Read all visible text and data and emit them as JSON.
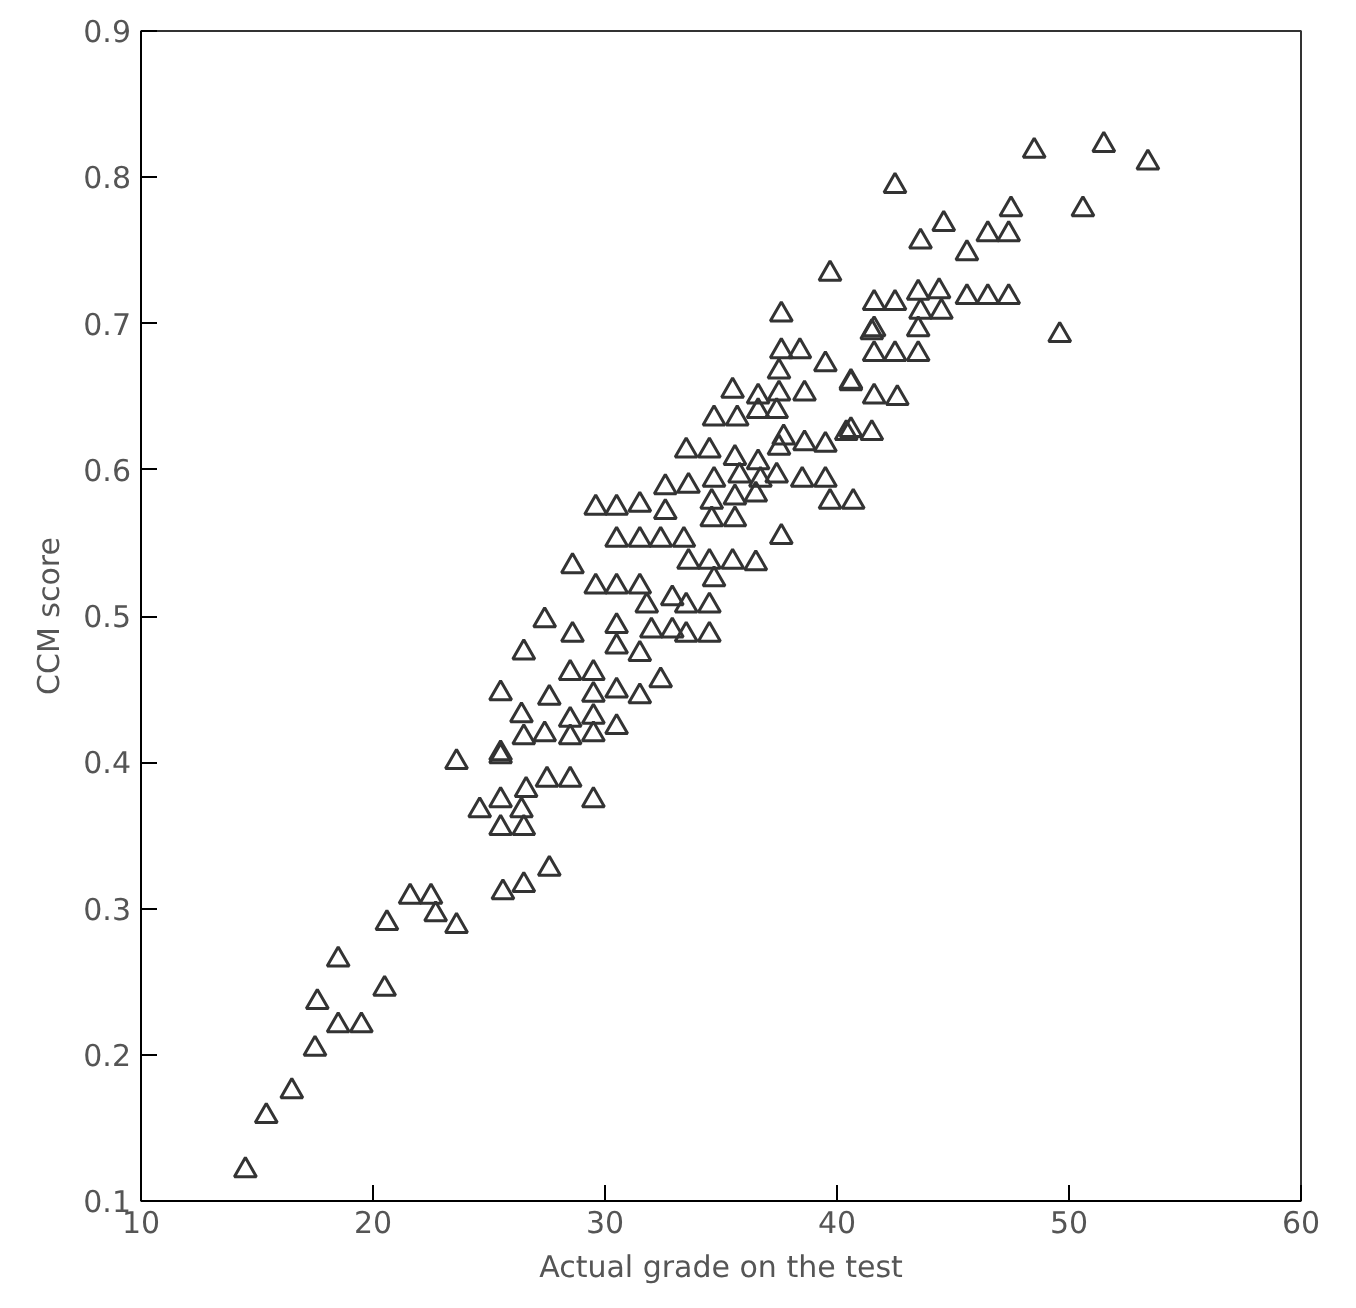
{
  "chart_data": {
    "type": "scatter",
    "xlabel": "Actual grade on the test",
    "ylabel": "CCM score",
    "marker": "triangle",
    "xlim": [
      10,
      60
    ],
    "ylim": [
      0.1,
      0.9
    ],
    "xticks": [
      10,
      20,
      30,
      40,
      50,
      60
    ],
    "yticks": [
      0.1,
      0.2,
      0.3,
      0.4,
      0.5,
      0.6,
      0.7,
      0.8,
      0.9
    ],
    "series": [
      {
        "color": "#333333",
        "x": [
          14.5,
          15.4,
          16.5,
          17.5,
          17.6,
          18.5,
          18.5,
          19.5,
          20.5,
          20.6,
          21.6,
          22.5,
          22.7,
          23.6,
          23.6,
          25.5,
          24.6,
          25.5,
          26.6,
          26.4,
          25.5,
          26.5,
          27.5,
          28.5,
          29.5,
          25.6,
          26.5,
          27.6,
          25.5,
          25.5,
          26.4,
          26.5,
          27.4,
          27.6,
          28.5,
          28.5,
          28.5,
          29.5,
          29.5,
          29.5,
          29.5,
          30.5,
          30.5,
          31.5,
          32.4,
          26.5,
          27.4,
          28.6,
          30.5,
          30.5,
          31.5,
          28.6,
          29.6,
          30.5,
          31.5,
          31.8,
          32.0,
          32.9,
          32.9,
          33.5,
          33.5,
          34.5,
          34.5,
          29.6,
          30.5,
          31.5,
          30.5,
          31.5,
          32.4,
          33.4,
          32.6,
          33.6,
          34.5,
          35.5,
          36.5,
          34.7,
          32.6,
          33.6,
          34.6,
          34.6,
          35.6,
          36.5,
          35.6,
          34.7,
          37.6,
          33.5,
          34.5,
          35.6,
          36.6,
          34.7,
          35.7,
          36.6,
          37.4,
          35.8,
          36.7,
          37.4,
          38.5,
          39.5,
          39.7,
          40.7,
          37.7,
          38.6,
          37.5,
          35.5,
          36.6,
          37.5,
          38.6,
          37.5,
          38.4,
          37.6,
          39.5,
          37.6,
          40.6,
          40.4,
          41.5,
          41.6,
          41.5,
          42.5,
          39.7,
          48.5,
          51.5,
          53.4,
          50.6,
          49.6,
          47.5,
          44.6,
          43.6,
          45.6,
          46.5,
          47.4,
          45.6,
          46.5,
          47.4,
          41.6,
          42.5,
          43.5,
          44.4,
          44.5,
          43.6,
          41.6,
          43.5,
          41.6,
          42.5,
          43.5,
          40.6,
          42.6,
          40.6,
          39.5
        ],
        "values": [
          0.121,
          0.158,
          0.175,
          0.204,
          0.236,
          0.265,
          0.22,
          0.22,
          0.245,
          0.29,
          0.308,
          0.308,
          0.296,
          0.288,
          0.4,
          0.404,
          0.367,
          0.374,
          0.381,
          0.367,
          0.355,
          0.355,
          0.388,
          0.388,
          0.374,
          0.311,
          0.316,
          0.327,
          0.406,
          0.447,
          0.432,
          0.417,
          0.419,
          0.444,
          0.461,
          0.429,
          0.417,
          0.461,
          0.446,
          0.431,
          0.419,
          0.449,
          0.424,
          0.445,
          0.456,
          0.475,
          0.497,
          0.487,
          0.493,
          0.479,
          0.474,
          0.534,
          0.52,
          0.52,
          0.52,
          0.507,
          0.49,
          0.512,
          0.49,
          0.507,
          0.487,
          0.507,
          0.487,
          0.574,
          0.574,
          0.576,
          0.552,
          0.552,
          0.552,
          0.552,
          0.571,
          0.537,
          0.537,
          0.537,
          0.536,
          0.525,
          0.588,
          0.589,
          0.578,
          0.566,
          0.566,
          0.583,
          0.581,
          0.593,
          0.554,
          0.613,
          0.613,
          0.608,
          0.605,
          0.635,
          0.635,
          0.64,
          0.64,
          0.596,
          0.593,
          0.596,
          0.593,
          0.593,
          0.578,
          0.578,
          0.622,
          0.618,
          0.615,
          0.654,
          0.65,
          0.652,
          0.652,
          0.667,
          0.681,
          0.681,
          0.672,
          0.706,
          0.66,
          0.625,
          0.625,
          0.65,
          0.694,
          0.794,
          0.734,
          0.818,
          0.822,
          0.81,
          0.778,
          0.692,
          0.778,
          0.768,
          0.756,
          0.748,
          0.761,
          0.761,
          0.718,
          0.718,
          0.718,
          0.714,
          0.714,
          0.721,
          0.722,
          0.708,
          0.708,
          0.696,
          0.696,
          0.679,
          0.679,
          0.679,
          0.659,
          0.649,
          0.627,
          0.617
        ]
      }
    ]
  }
}
